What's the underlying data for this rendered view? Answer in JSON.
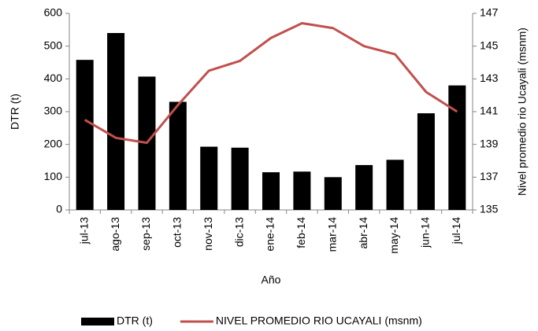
{
  "chart_data": {
    "type": "bar",
    "x_label": "Año",
    "y_label": "DTR (t)",
    "y2_label": "Nivel promedio rio Ucayali (msnm)",
    "categories": [
      "jul-13",
      "ago-13",
      "sep-13",
      "oct-13",
      "nov-13",
      "dic-13",
      "ene-14",
      "feb-14",
      "mar-14",
      "abr-14",
      "may-14",
      "jun-14",
      "jul-14"
    ],
    "series": [
      {
        "name": "DTR (t)",
        "type": "bar",
        "color": "#000000",
        "values": [
          458,
          540,
          407,
          330,
          193,
          190,
          115,
          117,
          100,
          137,
          153,
          295,
          380
        ]
      },
      {
        "name": "NIVEL PROMEDIO RIO UCAYALI (msnm)",
        "type": "line",
        "axis": "y2",
        "color": "#c0504d",
        "values": [
          140.5,
          139.4,
          139.1,
          141.4,
          143.5,
          144.1,
          145.5,
          146.4,
          146.1,
          145.0,
          144.5,
          142.2,
          141.0
        ]
      }
    ],
    "ylim": [
      0,
      600
    ],
    "yticks": [
      0,
      100,
      200,
      300,
      400,
      500,
      600
    ],
    "y2lim": [
      135,
      147
    ],
    "y2ticks": [
      135,
      137,
      139,
      141,
      143,
      145,
      147
    ],
    "grid": false,
    "legend": "bottom"
  }
}
